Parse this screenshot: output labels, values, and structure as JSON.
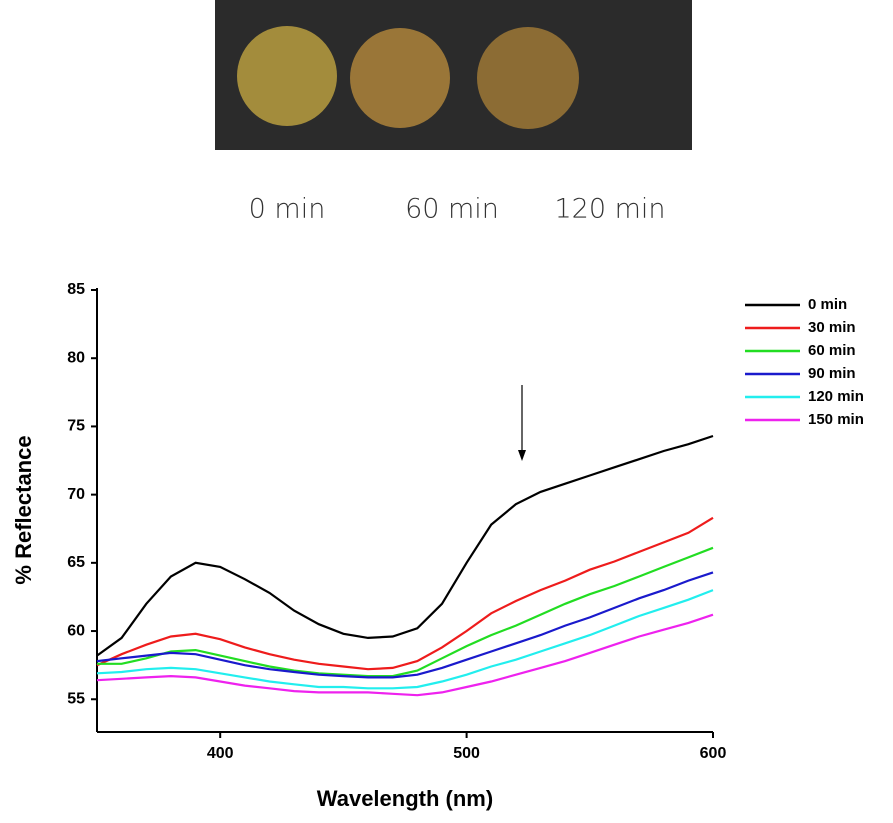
{
  "photo": {
    "labels": [
      "0 min",
      "60 min",
      "120 min"
    ]
  },
  "chart_data": {
    "type": "line",
    "xlabel": "Wavelength (nm)",
    "ylabel": "% Reflectance",
    "xlim": [
      350,
      600
    ],
    "xticks": [
      400,
      500,
      600
    ],
    "ylim": [
      52.6,
      85
    ],
    "yticks": [
      55,
      60,
      65,
      70,
      75,
      80,
      85
    ],
    "legend": "top-right",
    "x": [
      350,
      360,
      370,
      380,
      390,
      400,
      410,
      420,
      430,
      440,
      450,
      460,
      470,
      480,
      490,
      500,
      510,
      520,
      530,
      540,
      550,
      560,
      570,
      580,
      590,
      600
    ],
    "series": [
      {
        "name": "0 min",
        "color": "#000000",
        "values": [
          58.2,
          59.5,
          62,
          64,
          65,
          64.7,
          63.8,
          62.8,
          61.5,
          60.5,
          59.8,
          59.5,
          59.6,
          60.2,
          62,
          65,
          67.8,
          69.3,
          70.2,
          70.8,
          71.4,
          72,
          72.6,
          73.2,
          73.7,
          74.3
        ]
      },
      {
        "name": "30 min",
        "color": "#ee1c1c",
        "values": [
          57.5,
          58.3,
          59,
          59.6,
          59.8,
          59.4,
          58.8,
          58.3,
          57.9,
          57.6,
          57.4,
          57.2,
          57.3,
          57.8,
          58.8,
          60,
          61.3,
          62.2,
          63,
          63.7,
          64.5,
          65.1,
          65.8,
          66.5,
          67.2,
          68.3
        ]
      },
      {
        "name": "60 min",
        "color": "#22dd22",
        "values": [
          57.6,
          57.6,
          58,
          58.5,
          58.6,
          58.2,
          57.8,
          57.4,
          57.1,
          56.9,
          56.8,
          56.7,
          56.7,
          57.1,
          58,
          58.9,
          59.7,
          60.4,
          61.2,
          62,
          62.7,
          63.3,
          64,
          64.7,
          65.4,
          66.1
        ]
      },
      {
        "name": "90 min",
        "color": "#1a1acc",
        "values": [
          57.8,
          58,
          58.2,
          58.4,
          58.3,
          57.9,
          57.5,
          57.2,
          57,
          56.8,
          56.7,
          56.6,
          56.6,
          56.8,
          57.3,
          57.9,
          58.5,
          59.1,
          59.7,
          60.4,
          61,
          61.7,
          62.4,
          63,
          63.7,
          64.3
        ]
      },
      {
        "name": "120 min",
        "color": "#22eeee",
        "values": [
          56.9,
          57,
          57.2,
          57.3,
          57.2,
          56.9,
          56.6,
          56.3,
          56.1,
          55.9,
          55.9,
          55.8,
          55.8,
          55.9,
          56.3,
          56.8,
          57.4,
          57.9,
          58.5,
          59.1,
          59.7,
          60.4,
          61.1,
          61.7,
          62.3,
          63
        ]
      },
      {
        "name": "150 min",
        "color": "#ee22ee",
        "values": [
          56.4,
          56.5,
          56.6,
          56.7,
          56.6,
          56.3,
          56,
          55.8,
          55.6,
          55.5,
          55.5,
          55.5,
          55.4,
          55.3,
          55.5,
          55.9,
          56.3,
          56.8,
          57.3,
          57.8,
          58.4,
          59,
          59.6,
          60.1,
          60.6,
          61.2
        ]
      }
    ]
  }
}
